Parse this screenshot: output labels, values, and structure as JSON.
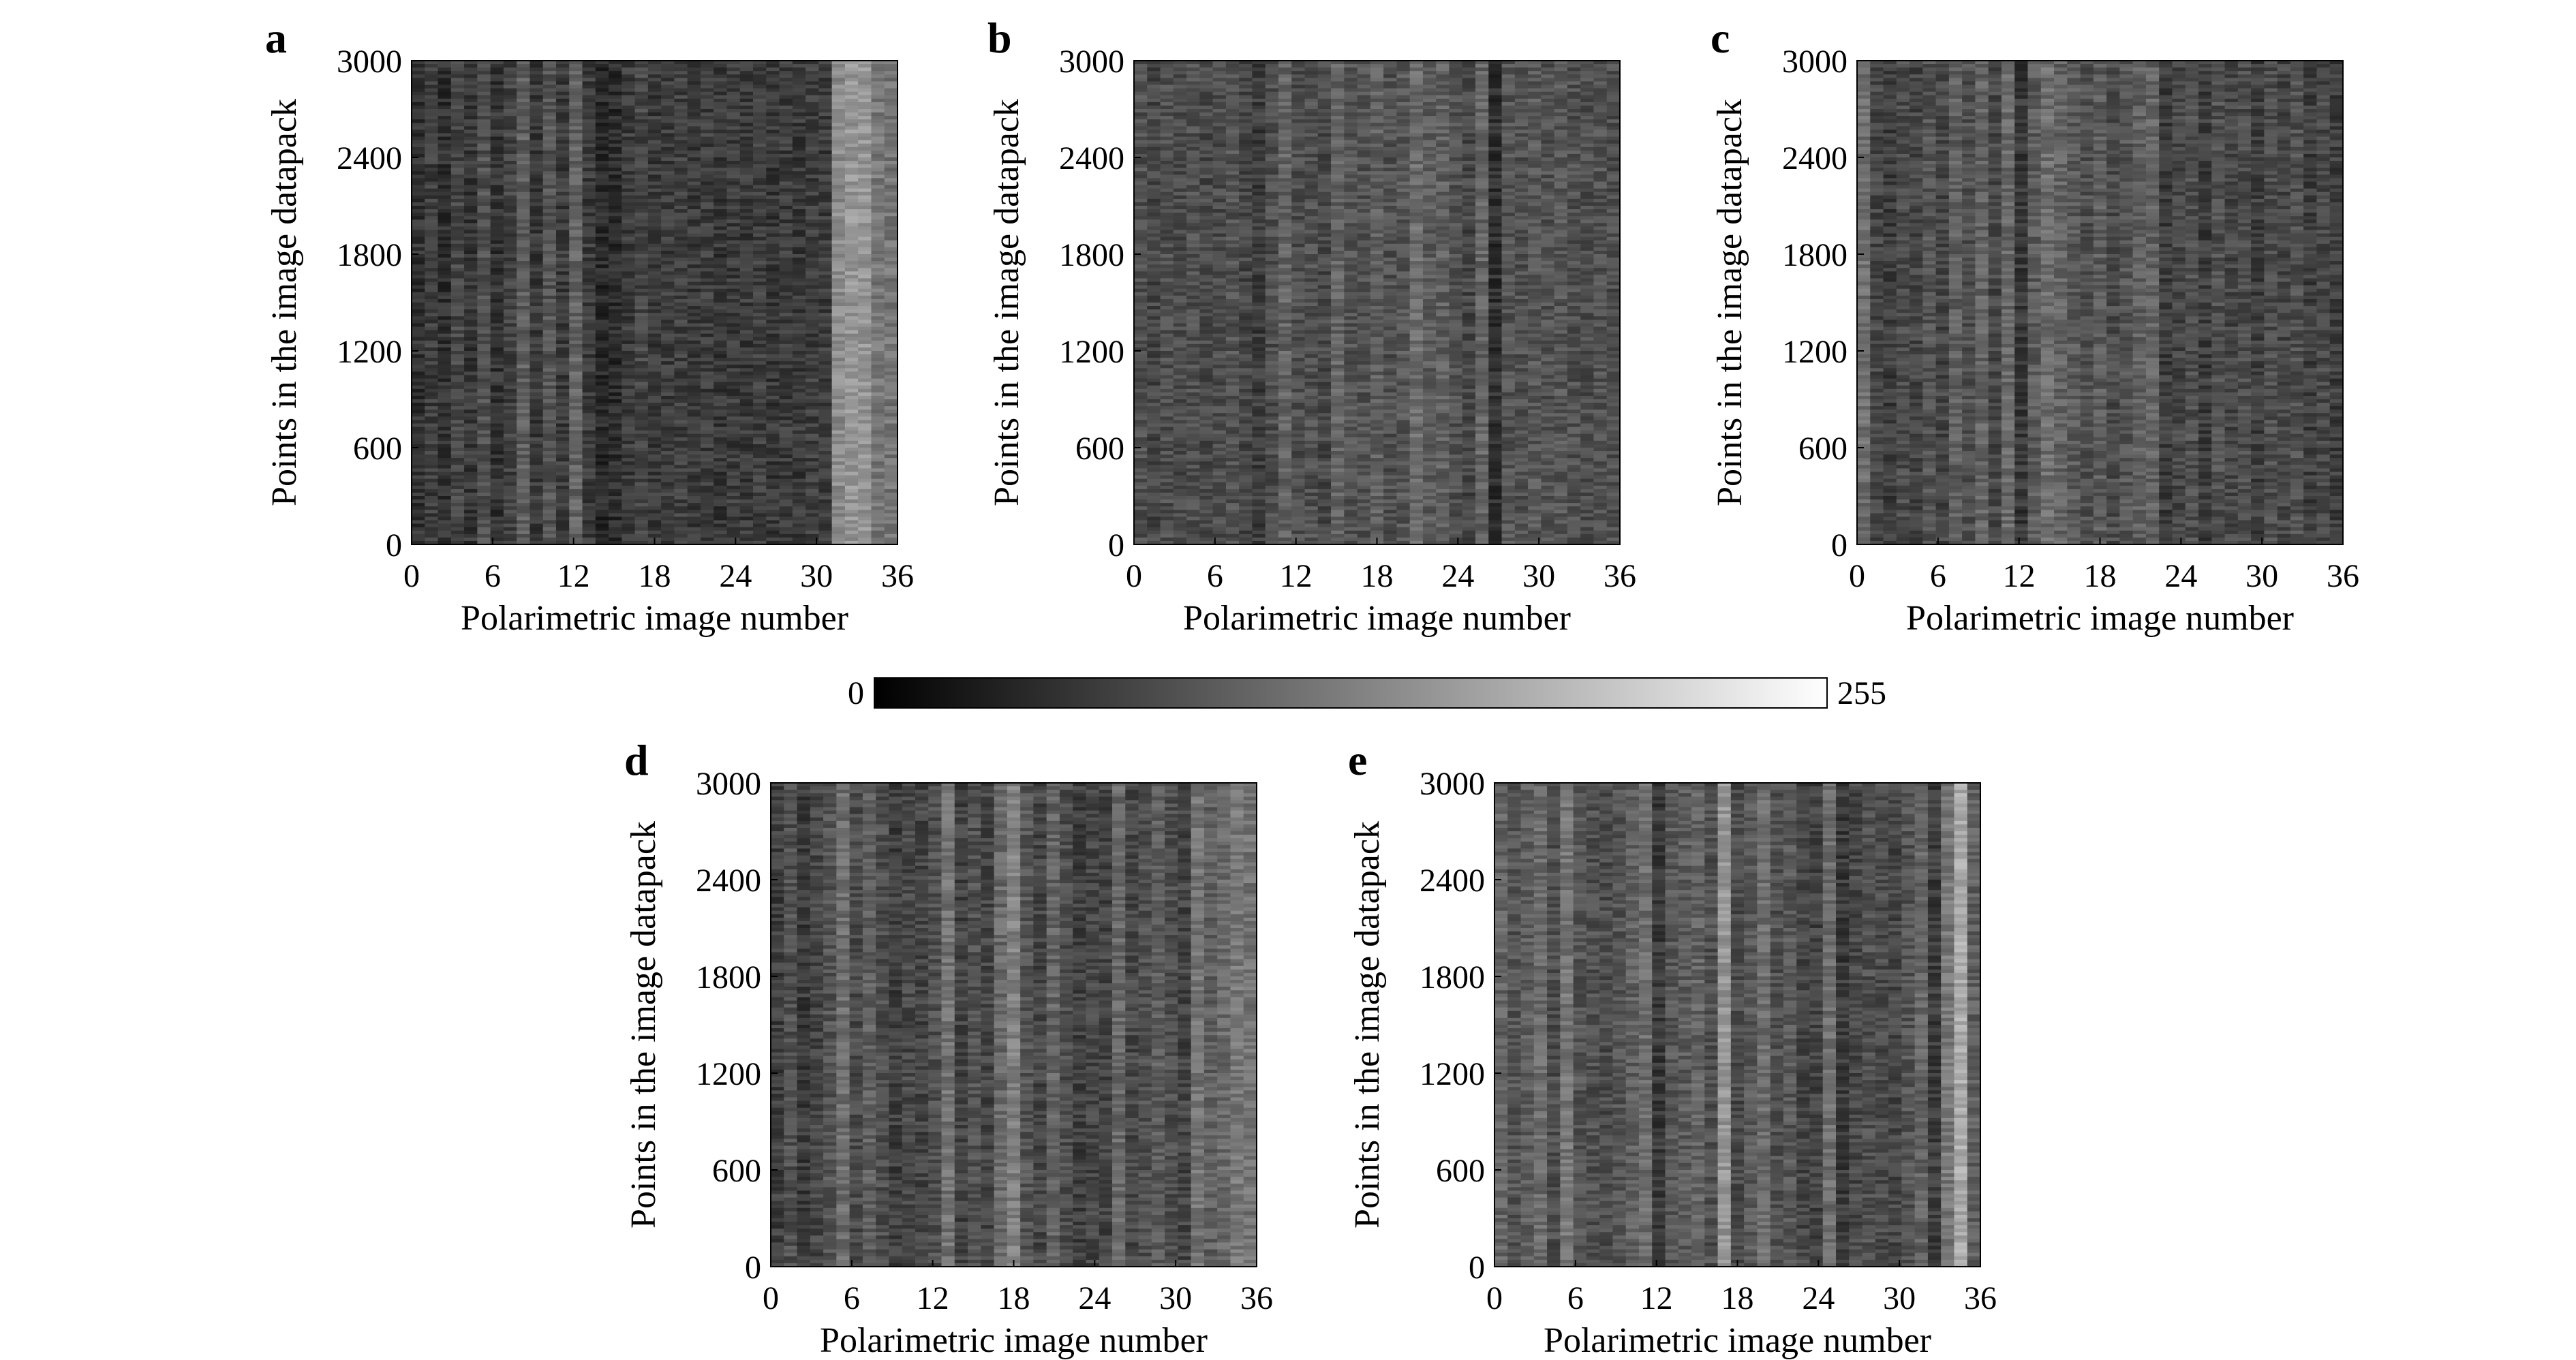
{
  "figure": {
    "colorbar": {
      "min_label": "0",
      "max_label": "255",
      "range": [
        0,
        255
      ],
      "colormap": "gray"
    }
  },
  "chart_data": [
    {
      "panel": "a",
      "type": "heatmap",
      "xlabel": "Polarimetric image number",
      "ylabel": "Points in the image datapack",
      "xlim": [
        0,
        36
      ],
      "ylim": [
        0,
        3000
      ],
      "xticks": [
        "0",
        "6",
        "12",
        "18",
        "24",
        "30",
        "36"
      ],
      "yticks": [
        "0",
        "600",
        "1200",
        "1800",
        "2400",
        "3000"
      ],
      "value_range": [
        0,
        255
      ],
      "column_mean_intensity": [
        50,
        62,
        48,
        70,
        55,
        80,
        52,
        66,
        95,
        58,
        85,
        60,
        100,
        60,
        42,
        45,
        60,
        70,
        58,
        60,
        65,
        58,
        62,
        55,
        60,
        58,
        62,
        56,
        60,
        58,
        62,
        60,
        140,
        150,
        150,
        120,
        118
      ]
    },
    {
      "panel": "b",
      "type": "heatmap",
      "xlabel": "Polarimetric image number",
      "ylabel": "Points in the image datapack",
      "xlim": [
        0,
        36
      ],
      "ylim": [
        0,
        3000
      ],
      "xticks": [
        "0",
        "6",
        "12",
        "18",
        "24",
        "30",
        "36"
      ],
      "yticks": [
        "0",
        "600",
        "1200",
        "1800",
        "2400",
        "3000"
      ],
      "value_range": [
        0,
        255
      ],
      "column_mean_intensity": [
        80,
        70,
        78,
        74,
        80,
        72,
        76,
        82,
        70,
        60,
        78,
        100,
        78,
        80,
        72,
        100,
        84,
        82,
        95,
        80,
        86,
        108,
        92,
        96,
        80,
        70,
        100,
        48,
        84,
        80,
        88,
        82,
        86,
        80,
        78,
        82,
        78
      ]
    },
    {
      "panel": "c",
      "type": "heatmap",
      "xlabel": "Polarimetric image number",
      "ylabel": "Points in the image datapack",
      "xlim": [
        0,
        36
      ],
      "ylim": [
        0,
        3000
      ],
      "xticks": [
        "0",
        "6",
        "12",
        "18",
        "24",
        "30",
        "36"
      ],
      "yticks": [
        "0",
        "600",
        "1200",
        "1800",
        "2400",
        "3000"
      ],
      "value_range": [
        0,
        255
      ],
      "column_mean_intensity": [
        110,
        70,
        60,
        76,
        68,
        84,
        70,
        96,
        80,
        100,
        72,
        105,
        56,
        92,
        110,
        100,
        90,
        80,
        92,
        75,
        85,
        95,
        100,
        60,
        70,
        78,
        60,
        80,
        70,
        78,
        62,
        78,
        70,
        80,
        62,
        72,
        62
      ]
    },
    {
      "panel": "d",
      "type": "heatmap",
      "xlabel": "Polarimetric image number",
      "ylabel": "Points in the image datapack",
      "xlim": [
        0,
        36
      ],
      "ylim": [
        0,
        3000
      ],
      "xticks": [
        "0",
        "6",
        "12",
        "18",
        "24",
        "30",
        "36"
      ],
      "yticks": [
        "0",
        "600",
        "1200",
        "1800",
        "2400",
        "3000"
      ],
      "value_range": [
        0,
        255
      ],
      "column_mean_intensity": [
        62,
        80,
        58,
        70,
        84,
        110,
        75,
        95,
        78,
        62,
        72,
        68,
        80,
        115,
        66,
        82,
        70,
        105,
        130,
        85,
        70,
        100,
        78,
        62,
        70,
        68,
        105,
        72,
        80,
        92,
        78,
        68,
        115,
        96,
        105,
        120,
        115
      ]
    },
    {
      "panel": "e",
      "type": "heatmap",
      "xlabel": "Polarimetric image number",
      "ylabel": "Points in the image datapack",
      "xlim": [
        0,
        36
      ],
      "ylim": [
        0,
        3000
      ],
      "xticks": [
        "0",
        "6",
        "12",
        "18",
        "24",
        "30",
        "36"
      ],
      "yticks": [
        "0",
        "600",
        "1200",
        "1800",
        "2400",
        "3000"
      ],
      "value_range": [
        0,
        255
      ],
      "column_mean_intensity": [
        100,
        84,
        95,
        108,
        78,
        118,
        84,
        80,
        76,
        84,
        96,
        110,
        58,
        88,
        92,
        100,
        80,
        150,
        75,
        90,
        110,
        80,
        88,
        70,
        66,
        110,
        58,
        72,
        80,
        76,
        70,
        84,
        100,
        60,
        120,
        170,
        96
      ]
    }
  ]
}
